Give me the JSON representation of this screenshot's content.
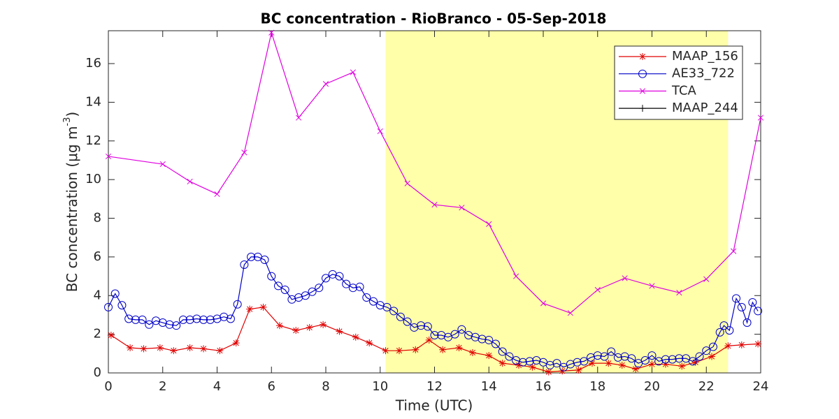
{
  "chart_data": {
    "type": "line",
    "title": "BC concentration  - RioBranco - 05-Sep-2018",
    "xlabel": "Time (UTC)",
    "ylabel": {
      "text": "BC concentration (μg m",
      "sup": "-3",
      "end": ")"
    },
    "xlim": [
      0,
      24
    ],
    "ylim": [
      0,
      17.7
    ],
    "xticks": [
      0,
      2,
      4,
      6,
      8,
      10,
      12,
      14,
      16,
      18,
      20,
      22,
      24
    ],
    "yticks": [
      0,
      2,
      4,
      6,
      8,
      10,
      12,
      14,
      16
    ],
    "shade": {
      "x": [
        10.2,
        22.8
      ],
      "color": "#ffffaa"
    },
    "legend": "upper right",
    "series": [
      {
        "name": "MAAP_156",
        "color": "#e00000",
        "marker": "asterisk",
        "x": [
          0.1,
          0.8,
          1.3,
          1.9,
          2.4,
          3,
          3.5,
          4.1,
          4.7,
          5.2,
          5.7,
          6.3,
          6.9,
          7.4,
          7.9,
          8.5,
          9.1,
          9.6,
          10.2,
          10.7,
          11.3,
          11.8,
          12.3,
          12.9,
          13.4,
          14,
          14.5,
          15.1,
          15.6,
          16.2,
          16.7,
          17.3,
          17.8,
          18.4,
          18.9,
          19.4,
          20,
          20.5,
          21.1,
          21.6,
          22.2,
          22.8,
          23.3,
          23.9
        ],
        "values": [
          1.95,
          1.3,
          1.25,
          1.3,
          1.15,
          1.3,
          1.25,
          1.15,
          1.55,
          3.3,
          3.4,
          2.45,
          2.2,
          2.35,
          2.5,
          2.15,
          1.85,
          1.55,
          1.15,
          1.15,
          1.2,
          1.7,
          1.2,
          1.3,
          1.05,
          0.9,
          0.5,
          0.4,
          0.3,
          0.05,
          0.1,
          0.15,
          0.5,
          0.5,
          0.4,
          0.2,
          0.45,
          0.45,
          0.35,
          0.55,
          0.85,
          1.4,
          1.45,
          1.5
        ]
      },
      {
        "name": "AE33_722",
        "color": "#0000c8",
        "marker": "circle",
        "x": [
          0,
          0.25,
          0.5,
          0.75,
          1,
          1.25,
          1.5,
          1.75,
          2,
          2.25,
          2.5,
          2.75,
          3,
          3.25,
          3.5,
          3.75,
          4,
          4.25,
          4.5,
          4.75,
          5,
          5.25,
          5.5,
          5.75,
          6,
          6.25,
          6.5,
          6.75,
          7,
          7.25,
          7.5,
          7.75,
          8,
          8.25,
          8.5,
          8.75,
          9,
          9.25,
          9.5,
          9.75,
          10,
          10.25,
          10.5,
          10.75,
          11,
          11.25,
          11.5,
          11.75,
          12,
          12.25,
          12.5,
          12.75,
          13,
          13.25,
          13.5,
          13.75,
          14,
          14.25,
          14.5,
          14.75,
          15,
          15.25,
          15.5,
          15.75,
          16,
          16.25,
          16.5,
          16.75,
          17,
          17.25,
          17.5,
          17.75,
          18,
          18.25,
          18.5,
          18.75,
          19,
          19.25,
          19.5,
          19.75,
          20,
          20.25,
          20.5,
          20.75,
          21,
          21.25,
          21.5,
          21.75,
          22,
          22.25,
          22.5,
          22.65,
          22.85,
          23.1,
          23.3,
          23.5,
          23.7,
          23.9
        ],
        "values": [
          3.4,
          4.1,
          3.5,
          2.8,
          2.75,
          2.75,
          2.5,
          2.7,
          2.6,
          2.5,
          2.45,
          2.75,
          2.75,
          2.8,
          2.75,
          2.75,
          2.8,
          2.9,
          2.8,
          3.55,
          5.6,
          6.0,
          6.0,
          5.85,
          5.0,
          4.5,
          4.3,
          3.8,
          3.9,
          4.0,
          4.2,
          4.4,
          4.9,
          5.1,
          5.0,
          4.6,
          4.4,
          4.45,
          3.9,
          3.7,
          3.5,
          3.4,
          3.2,
          2.9,
          2.65,
          2.35,
          2.45,
          2.4,
          1.95,
          1.95,
          1.85,
          2.0,
          2.25,
          1.95,
          1.85,
          1.75,
          1.7,
          1.5,
          1.1,
          0.85,
          0.65,
          0.55,
          0.6,
          0.65,
          0.55,
          0.4,
          0.5,
          0.3,
          0.45,
          0.55,
          0.6,
          0.8,
          0.9,
          0.85,
          1.1,
          0.8,
          0.85,
          0.75,
          0.5,
          0.65,
          0.9,
          0.6,
          0.7,
          0.7,
          0.75,
          0.75,
          0.6,
          0.85,
          1.15,
          1.35,
          2.1,
          2.45,
          2.2,
          3.85,
          3.4,
          2.6,
          3.65,
          3.2
        ]
      },
      {
        "name": "TCA",
        "color": "#e000e0",
        "marker": "x",
        "x": [
          0,
          2,
          3,
          4,
          5,
          6,
          7,
          8,
          9,
          10,
          11,
          12,
          13,
          14,
          15,
          16,
          17,
          18,
          19,
          20,
          21,
          22,
          23,
          24
        ],
        "values": [
          11.2,
          10.8,
          9.9,
          9.25,
          11.4,
          17.6,
          13.2,
          14.95,
          15.55,
          12.5,
          9.8,
          8.7,
          8.55,
          7.7,
          5.0,
          3.6,
          3.1,
          4.3,
          4.9,
          4.5,
          4.15,
          4.85,
          6.3,
          13.2
        ]
      },
      {
        "name": "MAAP_244",
        "color": "#000000",
        "marker": "plus",
        "x": [],
        "values": []
      }
    ]
  }
}
